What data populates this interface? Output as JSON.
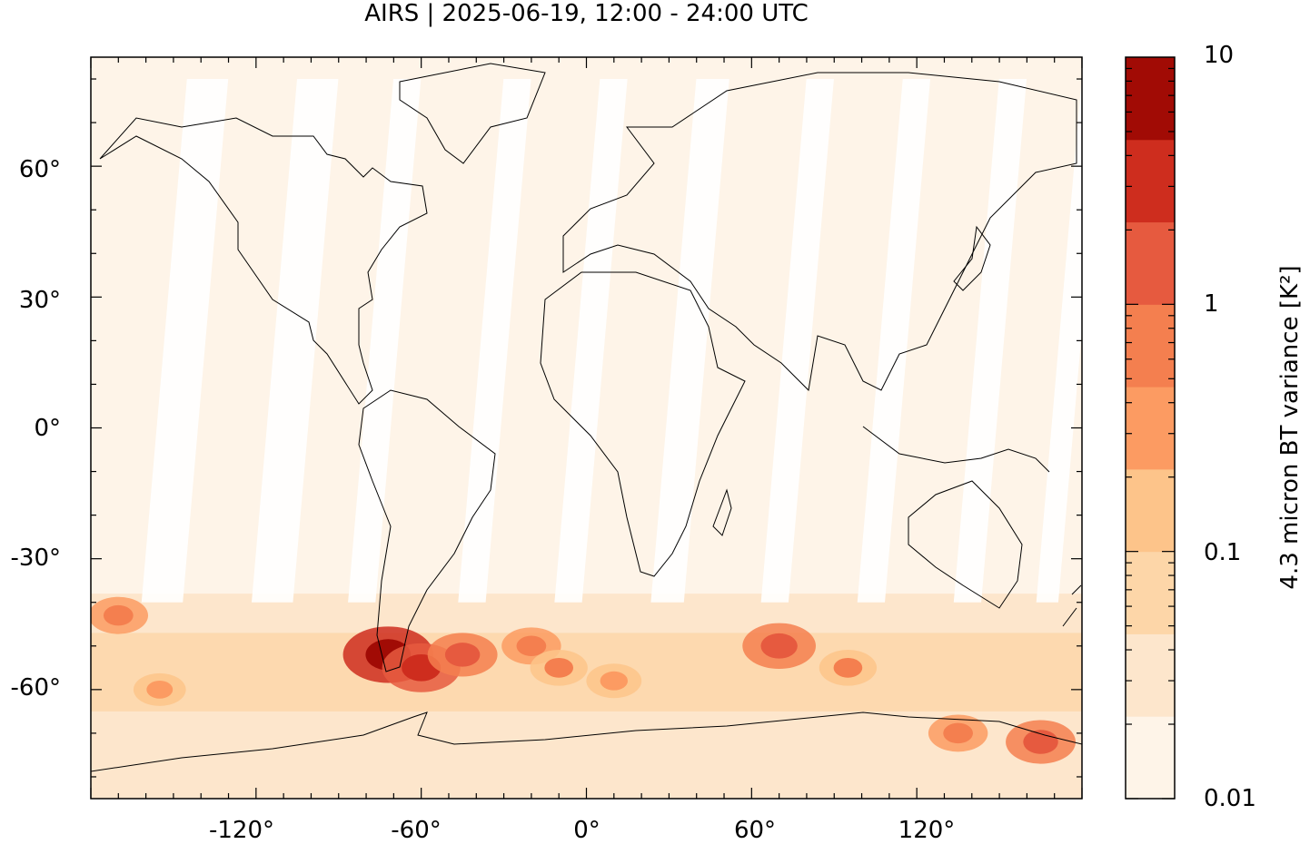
{
  "title": "AIRS | 2025-06-19, 12:00 - 24:00 UTC",
  "map": {
    "projection": "equirectangular",
    "lon_range": [
      -180,
      180
    ],
    "lat_range": [
      -85,
      85
    ],
    "lat_ticks": [
      {
        "value": 60,
        "label": "60°"
      },
      {
        "value": 30,
        "label": "30°"
      },
      {
        "value": 0,
        "label": "0°"
      },
      {
        "value": -30,
        "label": "-30°"
      },
      {
        "value": -60,
        "label": "-60°"
      }
    ],
    "lon_ticks": [
      {
        "value": -120,
        "label": "-120°"
      },
      {
        "value": -60,
        "label": "-60°"
      },
      {
        "value": 0,
        "label": "0°"
      },
      {
        "value": 60,
        "label": "60°"
      },
      {
        "value": 120,
        "label": "120°"
      }
    ],
    "data_gaps_note_swaths": true,
    "hotspots": [
      {
        "lon": -72,
        "lat": -52,
        "value": 8
      },
      {
        "lon": -60,
        "lat": -55,
        "value": 3
      },
      {
        "lon": -45,
        "lat": -52,
        "value": 1.5
      },
      {
        "lon": -20,
        "lat": -50,
        "value": 0.6
      },
      {
        "lon": -10,
        "lat": -55,
        "value": 0.5
      },
      {
        "lon": 10,
        "lat": -58,
        "value": 0.4
      },
      {
        "lon": 70,
        "lat": -50,
        "value": 2
      },
      {
        "lon": 95,
        "lat": -55,
        "value": 0.5
      },
      {
        "lon": 135,
        "lat": -70,
        "value": 0.6
      },
      {
        "lon": 165,
        "lat": -72,
        "value": 1.5
      },
      {
        "lon": -170,
        "lat": -43,
        "value": 0.6
      },
      {
        "lon": -155,
        "lat": -60,
        "value": 0.3
      }
    ]
  },
  "colorbar": {
    "title": "4.3 micron BT variance [K²]",
    "scale": "log",
    "range": [
      0.01,
      10
    ],
    "tick_labels": [
      {
        "value": 10,
        "label": "10"
      },
      {
        "value": 1,
        "label": "1"
      },
      {
        "value": 0.1,
        "label": "0.1"
      },
      {
        "value": 0.01,
        "label": "0.01"
      }
    ],
    "colors": [
      "#fef4e8",
      "#fde6cc",
      "#fdd6a8",
      "#fdc48a",
      "#fc9b62",
      "#f47f4f",
      "#e65a3f",
      "#ce2d1e",
      "#a10b05"
    ]
  }
}
